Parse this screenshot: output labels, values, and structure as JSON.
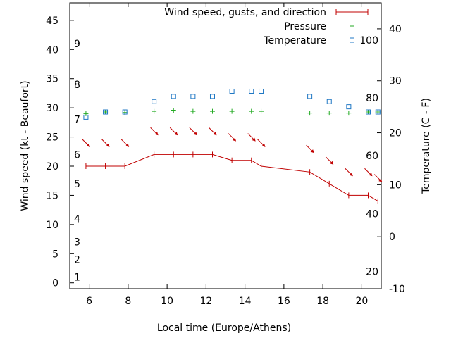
{
  "chart_data": {
    "type": "line",
    "xlabel": "Local time (Europe/Athens)",
    "ylabel": "Wind speed (kt - Beaufort)",
    "y2label": "Temperature (C - F)",
    "xlim": [
      5,
      21
    ],
    "ylim": [
      -1,
      48
    ],
    "y2lim": [
      -10,
      45
    ],
    "x_ticks": [
      6,
      8,
      10,
      12,
      14,
      16,
      18,
      20
    ],
    "y_ticks": [
      0,
      5,
      10,
      15,
      20,
      25,
      30,
      35,
      40,
      45
    ],
    "y2_ticks": [
      -10,
      0,
      10,
      20,
      30,
      40
    ],
    "grid": false,
    "legend_position": "top-right",
    "colors": {
      "wind": "#c00000",
      "pressure": "#22aa22",
      "temperature": "#1f77c4"
    },
    "beaufort_labels": [
      {
        "label": "1",
        "kt": 1
      },
      {
        "label": "2",
        "kt": 4
      },
      {
        "label": "3",
        "kt": 7
      },
      {
        "label": "4",
        "kt": 11
      },
      {
        "label": "5",
        "kt": 17
      },
      {
        "label": "6",
        "kt": 22
      },
      {
        "label": "7",
        "kt": 28
      },
      {
        "label": "8",
        "kt": 34
      },
      {
        "label": "9",
        "kt": 41
      }
    ],
    "fahrenheit_labels": [
      {
        "label": "20",
        "c": -6.7
      },
      {
        "label": "40",
        "c": 4.4
      },
      {
        "label": "60",
        "c": 15.6
      },
      {
        "label": "80",
        "c": 26.7
      },
      {
        "label": "100",
        "c": 37.8
      }
    ],
    "series": [
      {
        "name": "Wind speed, gusts, and direction",
        "axis": "y",
        "x": [
          5.83,
          6.83,
          7.83,
          9.33,
          10.33,
          11.33,
          12.33,
          13.33,
          14.33,
          14.83,
          17.33,
          18.33,
          19.33,
          20.33,
          20.83
        ],
        "y": [
          20,
          20,
          20,
          22,
          22,
          22,
          22,
          21,
          21,
          20,
          19,
          17,
          15,
          15,
          14
        ]
      },
      {
        "name": "Pressure",
        "axis": "y",
        "x": [
          5.83,
          6.83,
          7.83,
          9.33,
          10.33,
          11.33,
          12.33,
          13.33,
          14.33,
          14.83,
          17.33,
          18.33,
          19.33,
          20.33,
          20.83
        ],
        "y": [
          29.0,
          29.3,
          29.2,
          29.4,
          29.6,
          29.4,
          29.4,
          29.4,
          29.4,
          29.4,
          29.1,
          29.1,
          29.1,
          29.3,
          29.3
        ]
      },
      {
        "name": "Temperature",
        "axis": "y2",
        "x": [
          5.83,
          6.83,
          7.83,
          9.33,
          10.33,
          11.33,
          12.33,
          13.33,
          14.33,
          14.83,
          17.33,
          18.33,
          19.33,
          20.33,
          20.83
        ],
        "y": [
          23,
          24,
          24,
          26,
          27,
          27,
          27,
          28,
          28,
          28,
          27,
          26,
          25,
          24,
          24
        ]
      }
    ],
    "wind_arrows": [
      {
        "x": 5.83,
        "y": 24
      },
      {
        "x": 6.83,
        "y": 24
      },
      {
        "x": 7.83,
        "y": 24
      },
      {
        "x": 9.33,
        "y": 26
      },
      {
        "x": 10.33,
        "y": 26
      },
      {
        "x": 11.33,
        "y": 26
      },
      {
        "x": 12.33,
        "y": 26
      },
      {
        "x": 13.33,
        "y": 25
      },
      {
        "x": 14.33,
        "y": 25
      },
      {
        "x": 14.83,
        "y": 24
      },
      {
        "x": 17.33,
        "y": 23
      },
      {
        "x": 18.33,
        "y": 21
      },
      {
        "x": 19.33,
        "y": 19
      },
      {
        "x": 20.33,
        "y": 19
      },
      {
        "x": 20.83,
        "y": 18
      }
    ]
  }
}
